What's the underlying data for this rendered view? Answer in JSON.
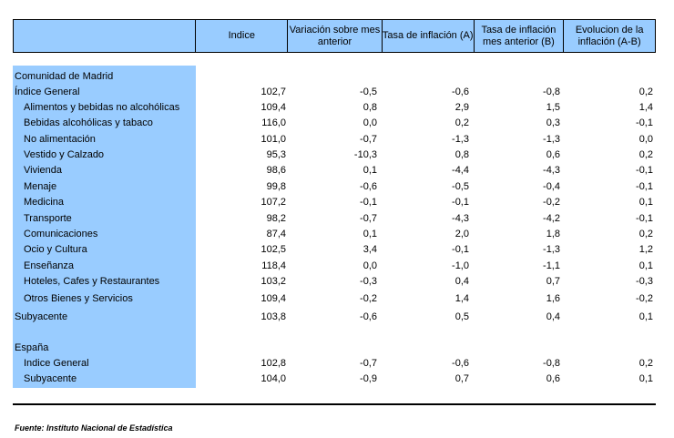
{
  "header": {
    "col_label": "",
    "col_indice": "Indice",
    "col_variacion": "Variación sobre mes anterior",
    "col_tasa_a": "Tasa de inflación (A)",
    "col_tasa_b": "Tasa de inflación mes anterior (B)",
    "col_evolucion": "Evolucion de la inflación (A-B)"
  },
  "madrid": {
    "title": "Comunidad de Madrid",
    "general": {
      "label": "Índice General",
      "values": [
        "102,7",
        "-0,5",
        "-0,6",
        "-0,8",
        "0,2"
      ]
    },
    "items": [
      {
        "label": "Alimentos y bebidas no alcohólicas",
        "values": [
          "109,4",
          "0,8",
          "2,9",
          "1,5",
          "1,4"
        ]
      },
      {
        "label": "Bebidas alcohólicas y tabaco",
        "values": [
          "116,0",
          "0,0",
          "0,2",
          "0,3",
          "-0,1"
        ]
      },
      {
        "label": "No alimentación",
        "values": [
          "101,0",
          "-0,7",
          "-1,3",
          "-1,3",
          "0,0"
        ]
      },
      {
        "label": "Vestido y Calzado",
        "values": [
          "95,3",
          "-10,3",
          "0,8",
          "0,6",
          "0,2"
        ]
      },
      {
        "label": "Vivienda",
        "values": [
          "98,6",
          "0,1",
          "-4,4",
          "-4,3",
          "-0,1"
        ]
      },
      {
        "label": "Menaje",
        "values": [
          "99,8",
          "-0,6",
          "-0,5",
          "-0,4",
          "-0,1"
        ]
      },
      {
        "label": "Medicina",
        "values": [
          "107,2",
          "-0,1",
          "-0,1",
          "-0,2",
          "0,1"
        ]
      },
      {
        "label": "Transporte",
        "values": [
          "98,2",
          "-0,7",
          "-4,3",
          "-4,2",
          "-0,1"
        ]
      },
      {
        "label": "Comunicaciones",
        "values": [
          "87,4",
          "0,1",
          "2,0",
          "1,8",
          "0,2"
        ]
      },
      {
        "label": "Ocio y Cultura",
        "values": [
          "102,5",
          "3,4",
          "-0,1",
          "-1,3",
          "1,2"
        ]
      },
      {
        "label": "Enseñanza",
        "values": [
          "118,4",
          "0,0",
          "-1,0",
          "-1,1",
          "0,1"
        ]
      },
      {
        "label": "Hoteles, Cafes y Restaurantes",
        "values": [
          "103,2",
          "-0,3",
          "0,4",
          "0,7",
          "-0,3"
        ]
      },
      {
        "label": "Otros Bienes y Servicios",
        "values": [
          "109,4",
          "-0,2",
          "1,4",
          "1,6",
          "-0,2"
        ]
      }
    ],
    "subyacente": {
      "label": "Subyacente",
      "values": [
        "103,8",
        "-0,6",
        "0,5",
        "0,4",
        "0,1"
      ]
    }
  },
  "espana": {
    "title": "España",
    "general": {
      "label": "Indice General",
      "values": [
        "102,8",
        "-0,7",
        "-0,6",
        "-0,8",
        "0,2"
      ]
    },
    "subyacente": {
      "label": "Subyacente",
      "values": [
        "104,0",
        "-0,9",
        "0,7",
        "0,6",
        "0,1"
      ]
    }
  },
  "source": "Fuente: Instituto Nacional de Estadística"
}
